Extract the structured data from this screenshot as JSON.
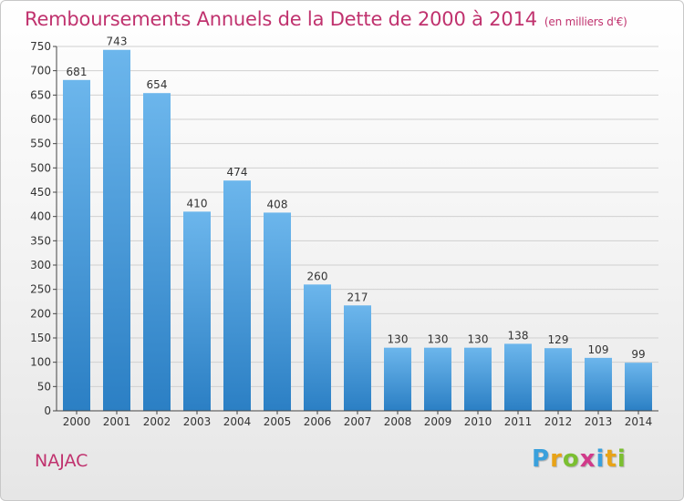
{
  "title": "Remboursements Annuels de la Dette de 2000 à 2014",
  "subtitle": "(en milliers d'€)",
  "commune": "NAJAC",
  "brand": {
    "letters": [
      "P",
      "r",
      "o",
      "x",
      "i",
      "t",
      "i"
    ],
    "colors": [
      "#3aa0dc",
      "#e8a317",
      "#7bbf31",
      "#d13a8a",
      "#3aa0dc",
      "#e8a317",
      "#7bbf31"
    ]
  },
  "colors": {
    "title": "#c0326e",
    "bar_light": "#6cb6ec",
    "bar_dark": "#2b7fc4",
    "grid": "#d0d0d0",
    "axis": "#444444"
  },
  "chart_data": {
    "type": "bar",
    "categories": [
      "2000",
      "2001",
      "2002",
      "2003",
      "2004",
      "2005",
      "2006",
      "2007",
      "2008",
      "2009",
      "2010",
      "2011",
      "2012",
      "2013",
      "2014"
    ],
    "values": [
      681,
      743,
      654,
      410,
      474,
      408,
      260,
      217,
      130,
      130,
      130,
      138,
      129,
      109,
      99
    ],
    "ylim": [
      0,
      750
    ],
    "yticks": [
      0,
      50,
      100,
      150,
      200,
      250,
      300,
      350,
      400,
      450,
      500,
      550,
      600,
      650,
      700,
      750
    ],
    "grid": true,
    "data_labels": true
  }
}
